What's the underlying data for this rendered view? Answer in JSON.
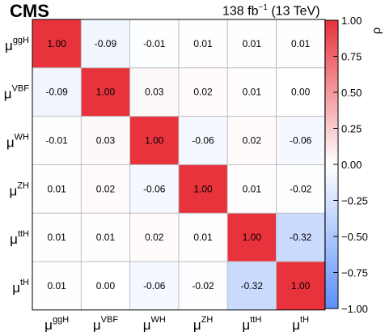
{
  "header": {
    "experiment": "CMS",
    "lumi_value": "138 fb",
    "lumi_exp": "−1",
    "lumi_energy": " (13 TeV)"
  },
  "chart_data": {
    "type": "heatmap",
    "labels": [
      {
        "base": "μ",
        "sup": "ggH"
      },
      {
        "base": "μ",
        "sup": "VBF"
      },
      {
        "base": "μ",
        "sup": "WH"
      },
      {
        "base": "μ",
        "sup": "ZH"
      },
      {
        "base": "μ",
        "sup": "ttH"
      },
      {
        "base": "μ",
        "sup": "tH"
      }
    ],
    "matrix": [
      [
        "1.00",
        "-0.09",
        "-0.01",
        "0.01",
        "0.01",
        "0.01"
      ],
      [
        "-0.09",
        "1.00",
        "0.03",
        "0.02",
        "0.01",
        "0.00"
      ],
      [
        "-0.01",
        "0.03",
        "1.00",
        "-0.06",
        "0.02",
        "-0.06"
      ],
      [
        "0.01",
        "0.02",
        "-0.06",
        "1.00",
        "0.01",
        "-0.02"
      ],
      [
        "0.01",
        "0.01",
        "0.02",
        "0.01",
        "1.00",
        "-0.32"
      ],
      [
        "0.01",
        "0.00",
        "-0.06",
        "-0.02",
        "-0.32",
        "1.00"
      ]
    ],
    "colorbar": {
      "label": "ρ",
      "range": [
        -1.0,
        1.0
      ],
      "ticks": [
        "1.00",
        "0.75",
        "0.50",
        "0.25",
        "0.00",
        "−0.25",
        "−0.50",
        "−0.75",
        "−1.00"
      ],
      "tick_values": [
        1.0,
        0.75,
        0.5,
        0.25,
        0.0,
        -0.25,
        -0.5,
        -0.75,
        -1.0
      ],
      "color_min": "#5b8ff9",
      "color_mid": "#ffffff",
      "color_max": "#e8323c"
    }
  }
}
